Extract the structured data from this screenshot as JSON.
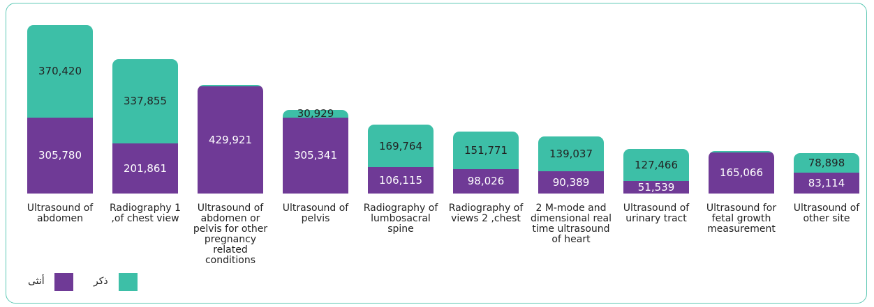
{
  "chart_data": {
    "type": "bar",
    "stacked": true,
    "categories": [
      "Ultrasound of abdomen",
      "Radiography 1 ,of chest view",
      "Ultrasound of abdomen or pelvis for other pregnancy related conditions",
      "Ultrasound of pelvis",
      "Radiography of lumbosacral spine",
      "Radiography of views 2 ,chest",
      "2 M-mode and dimensional real time ultrasound of heart",
      "Ultrasound of urinary tract",
      "Ultrasound for fetal growth measurement",
      "Ultrasound of other site"
    ],
    "series": [
      {
        "name": "أنثى",
        "color": "#6f3a96",
        "values": [
          305780,
          201861,
          429921,
          305341,
          106115,
          98026,
          90389,
          51539,
          165066,
          83114
        ],
        "value_labels": [
          "305,780",
          "201,861",
          "429,921",
          "305,341",
          "106,115",
          "98,026",
          "90,389",
          "51,539",
          "165,066",
          "83,114"
        ]
      },
      {
        "name": "ذكر",
        "color": "#3dbfa7",
        "values": [
          370420,
          337855,
          5000,
          30929,
          169764,
          151771,
          139037,
          127466,
          5000,
          78898
        ],
        "value_labels": [
          "370,420",
          "337,855",
          null,
          "30,929",
          "169,764",
          "151,771",
          "139,037",
          "127,466",
          null,
          "78,898"
        ]
      }
    ],
    "ylim": [
      0,
      690000
    ]
  }
}
